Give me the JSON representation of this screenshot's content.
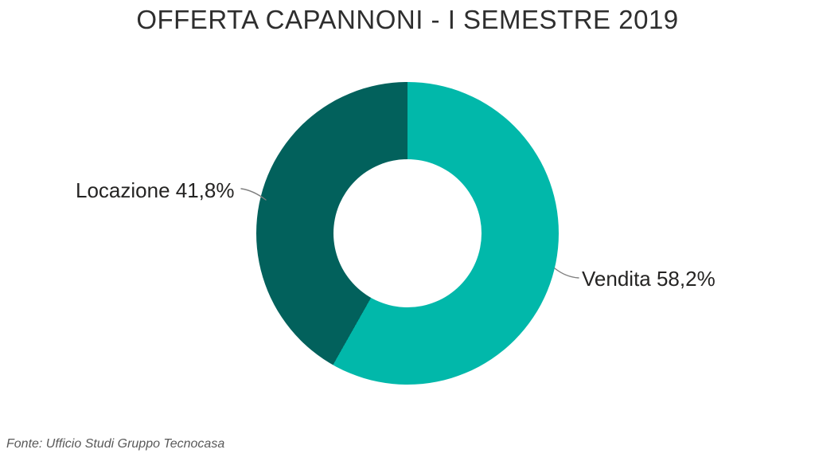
{
  "title": "OFFERTA CAPANNONI - I SEMESTRE 2019",
  "source_note": "Fonte: Ufficio Studi Gruppo Tecnocasa",
  "chart_data": {
    "type": "pie",
    "subtype": "donut",
    "title": "OFFERTA CAPANNONI - I SEMESTRE 2019",
    "slices": [
      {
        "label": "Vendita",
        "value": 58.2,
        "display_label": "Vendita 58,2%",
        "color": "#01b8aa"
      },
      {
        "label": "Locazione",
        "value": 41.8,
        "display_label": "Locazione 41,8%",
        "color": "#02615c"
      }
    ],
    "start_angle_deg": 0,
    "direction": "clockwise",
    "donut_hole_ratio": 0.49,
    "data_label_style": "category-name-and-percentage-with-leader-lines",
    "legend": "none",
    "background": "#ffffff",
    "source": "Fonte: Ufficio Studi Gruppo Tecnocasa"
  },
  "colors": {
    "title_text": "#2e2e2e",
    "label_text": "#252423",
    "source_text": "#595959",
    "leader_line": "#7f7f7f",
    "background": "#ffffff"
  }
}
